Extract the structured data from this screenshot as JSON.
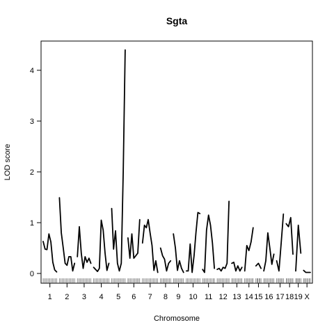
{
  "chart_data": {
    "type": "line",
    "title": "Sgta",
    "xlabel": "Chromosome",
    "ylabel": "LOD score",
    "ylim": [
      0,
      4.5
    ],
    "yticks": [
      0,
      1,
      2,
      3,
      4
    ],
    "grid": false,
    "legend": "none",
    "color": "#000000",
    "chromosomes": [
      {
        "name": "1",
        "lod": [
          0.63,
          0.48,
          0.47,
          0.78,
          0.62,
          0.22,
          0.07,
          0.03
        ]
      },
      {
        "name": "2",
        "lod": [
          1.49,
          0.8,
          0.5,
          0.2,
          0.16,
          0.33,
          0.33,
          0.05,
          0.2
        ]
      },
      {
        "name": "3",
        "lod": [
          0.33,
          0.92,
          0.4,
          0.1,
          0.33,
          0.22,
          0.3,
          0.2
        ]
      },
      {
        "name": "4",
        "lod": [
          0.12,
          0.08,
          0.04,
          0.1,
          1.05,
          0.85,
          0.4,
          0.06,
          0.2
        ]
      },
      {
        "name": "5",
        "lod": [
          1.28,
          0.48,
          0.84,
          0.2,
          0.05,
          0.2,
          2.0,
          4.4
        ]
      },
      {
        "name": "6",
        "lod": [
          0.7,
          0.3,
          0.78,
          0.3,
          0.35,
          0.4,
          1.06
        ]
      },
      {
        "name": "7",
        "lod": [
          0.6,
          0.95,
          0.9,
          1.06,
          0.8,
          0.55,
          0.06,
          0.25,
          0.02
        ]
      },
      {
        "name": "8",
        "lod": [
          0.5,
          0.35,
          0.28,
          0.05,
          0.2,
          0.25
        ]
      },
      {
        "name": "9",
        "lod": [
          0.78,
          0.5,
          0.06,
          0.25,
          0.1,
          0.02
        ]
      },
      {
        "name": "10",
        "lod": [
          0.05,
          0.05,
          0.58,
          0.02,
          0.35,
          0.8,
          1.2,
          1.18
        ]
      },
      {
        "name": "11",
        "lod": [
          0.08,
          0.02,
          0.85,
          1.15,
          0.95,
          0.6,
          0.1
        ]
      },
      {
        "name": "12",
        "lod": [
          0.08,
          0.1,
          0.05,
          0.12,
          0.1,
          0.2,
          1.42
        ]
      },
      {
        "name": "13",
        "lod": [
          0.2,
          0.22,
          0.05,
          0.15,
          0.05,
          0.12
        ]
      },
      {
        "name": "14",
        "lod": [
          0.05,
          0.55,
          0.45,
          0.62,
          0.9
        ]
      },
      {
        "name": "15",
        "lod": [
          0.15,
          0.2,
          0.1
        ]
      },
      {
        "name": "16",
        "lod": [
          0.05,
          0.25,
          0.8,
          0.5,
          0.18,
          0.38
        ]
      },
      {
        "name": "17",
        "lod": [
          0.25,
          0.05,
          0.6,
          1.17
        ]
      },
      {
        "name": "18",
        "lod": [
          0.98,
          0.92,
          1.1,
          0.38
        ]
      },
      {
        "name": "19",
        "lod": [
          0.05,
          0.95,
          0.4
        ]
      },
      {
        "name": "X",
        "lod": [
          0.06,
          0.02,
          0.02,
          0.02
        ]
      }
    ]
  }
}
